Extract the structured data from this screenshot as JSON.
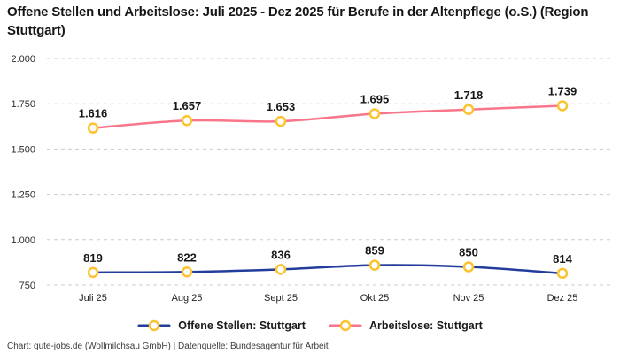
{
  "title": "Offene Stellen und Arbeitslose: Juli 2025 - Dez 2025 für Berufe in der Altenpflege (o.S.) (Region Stuttgart)",
  "footer": "Chart: gute-jobs.de (Wollmilchsau GmbH) | Datenquelle: Bundesagentur für Arbeit",
  "chart_data": {
    "type": "line",
    "categories": [
      "Juli 25",
      "Aug 25",
      "Sept 25",
      "Okt 25",
      "Nov 25",
      "Dez 25"
    ],
    "series": [
      {
        "name": "Offene Stellen: Stuttgart",
        "values": [
          819,
          822,
          836,
          859,
          850,
          814
        ],
        "labels": [
          "819",
          "822",
          "836",
          "859",
          "850",
          "814"
        ],
        "color": "#223d9b"
      },
      {
        "name": "Arbeitslose: Stuttgart",
        "values": [
          1616,
          1657,
          1653,
          1695,
          1718,
          1739
        ],
        "labels": [
          "1.616",
          "1.657",
          "1.653",
          "1.695",
          "1.718",
          "1.739"
        ],
        "color": "#f97589"
      }
    ],
    "marker": {
      "stroke": "#fcc330",
      "fill": "#ffffff"
    },
    "ylim": [
      750,
      2000
    ],
    "yticks": [
      2000,
      1750,
      1500,
      1250,
      1000,
      750
    ],
    "ytick_labels": [
      "2.000",
      "1.750",
      "1.500",
      "1.250",
      "1.000",
      "750"
    ],
    "grid": "horizontal-dashed",
    "legend_position": "bottom"
  }
}
